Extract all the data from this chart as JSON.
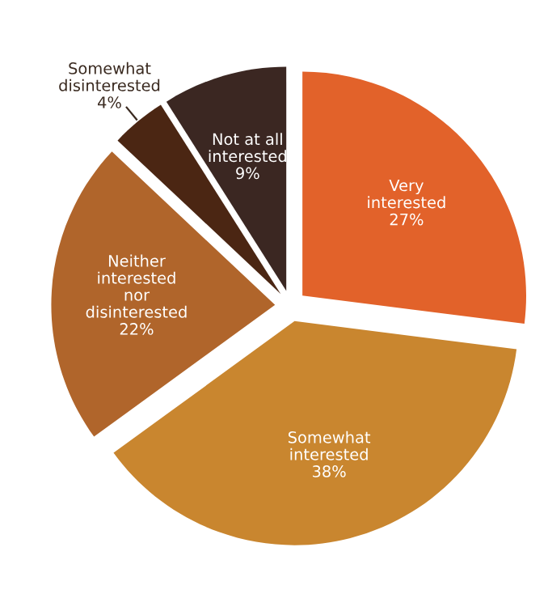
{
  "chart_data": {
    "type": "pie",
    "categories": [
      "Very\ninterested",
      "Somewhat\ninterested",
      "Neither\ninterested\nnor\ndisinterested",
      "Somewhat\ndisinterested",
      "Not at all\ninterested"
    ],
    "values": [
      27,
      38,
      22,
      4,
      9
    ],
    "value_labels": [
      "27%",
      "38%",
      "22%",
      "4%",
      "9%"
    ],
    "colors": [
      "#e2622a",
      "#c9862f",
      "#b0652b",
      "#4b2613",
      "#3b2722"
    ],
    "legend": false
  }
}
